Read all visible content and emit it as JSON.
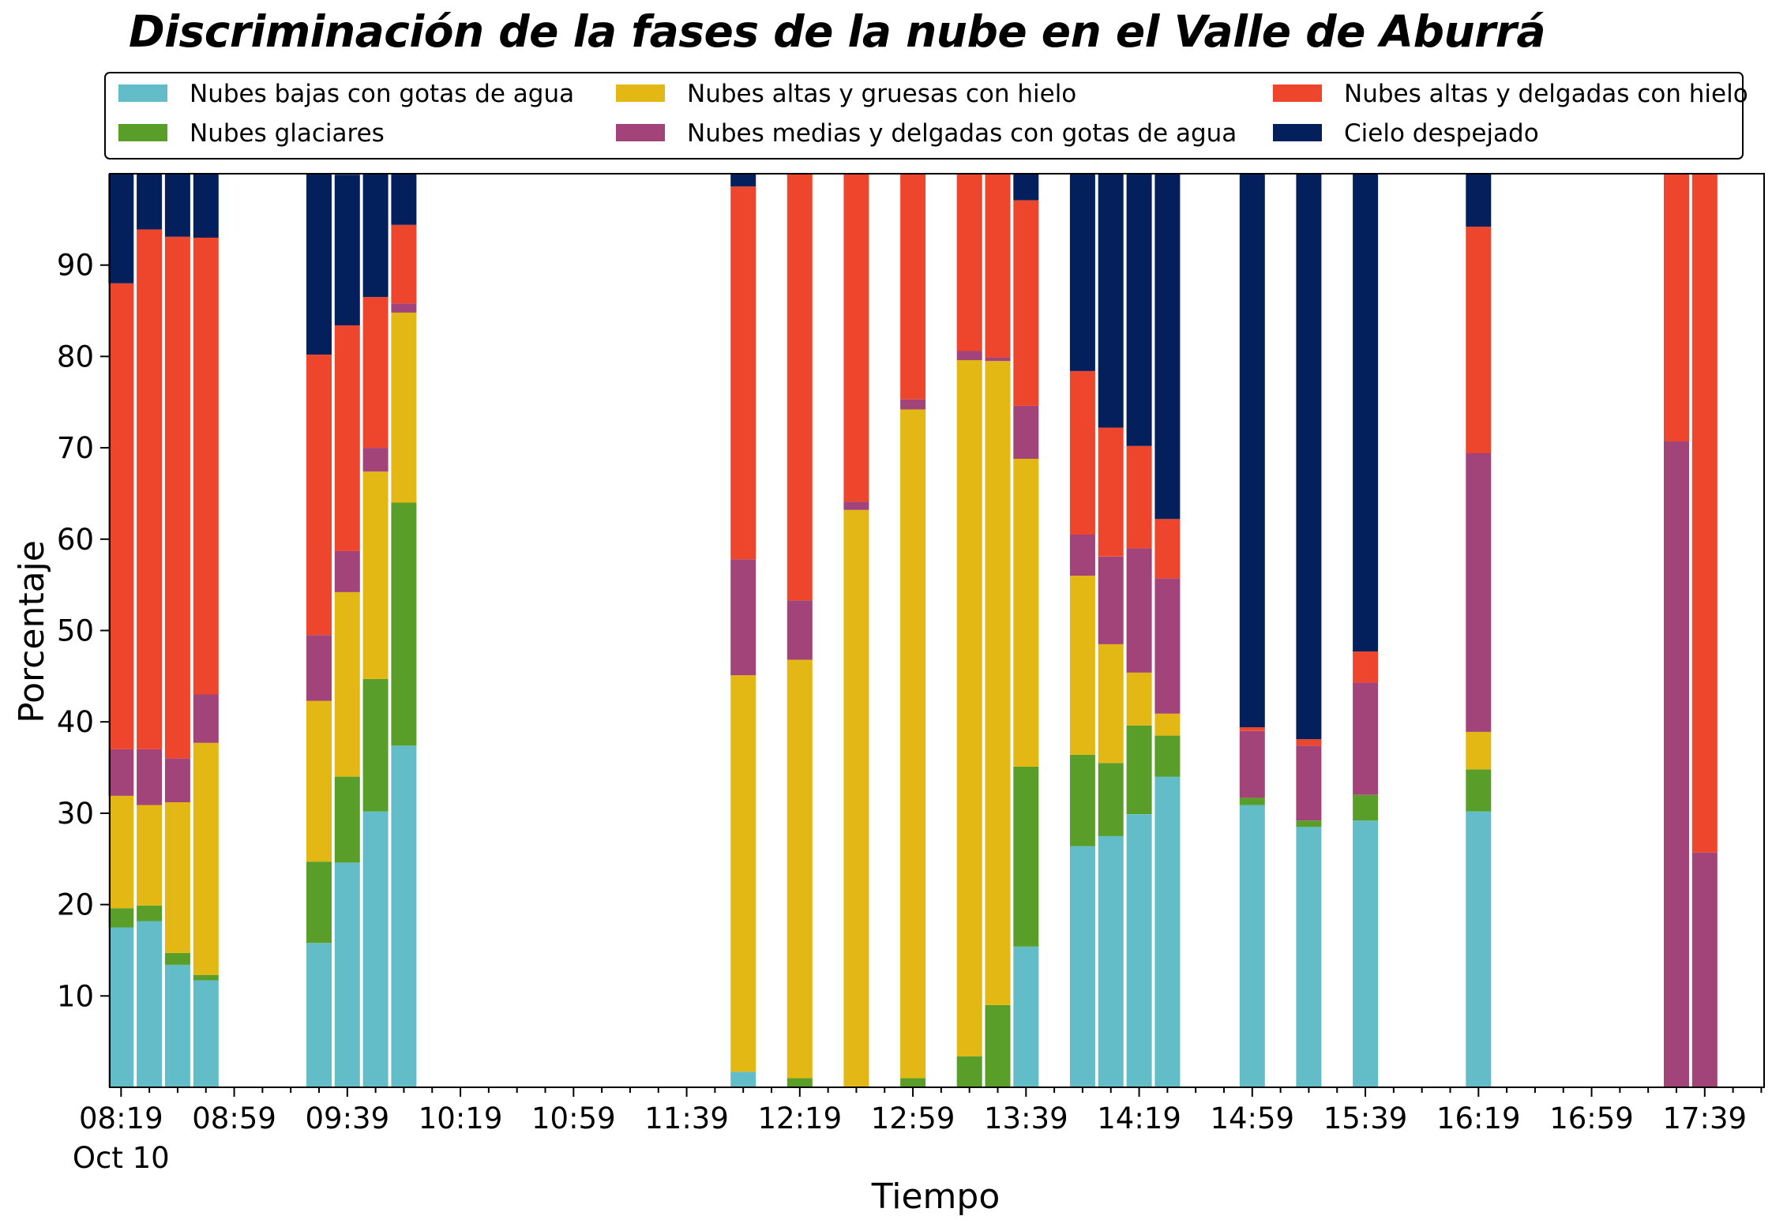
{
  "chart_data": {
    "type": "bar",
    "stacked": true,
    "title": "Discriminación de la fases de la nube en el Valle de Aburrá",
    "xlabel": "Tiempo",
    "ylabel": "Porcentaje",
    "ylim": [
      0,
      100
    ],
    "yticks": [
      10,
      20,
      30,
      40,
      50,
      60,
      70,
      80,
      90
    ],
    "xlim_minutes": [
      495,
      1080
    ],
    "xticks_major": [
      {
        "t": 499,
        "label": "08:19",
        "sublabel": "Oct 10"
      },
      {
        "t": 539,
        "label": "08:59"
      },
      {
        "t": 579,
        "label": "09:39"
      },
      {
        "t": 619,
        "label": "10:19"
      },
      {
        "t": 659,
        "label": "10:59"
      },
      {
        "t": 699,
        "label": "11:39"
      },
      {
        "t": 739,
        "label": "12:19"
      },
      {
        "t": 779,
        "label": "12:59"
      },
      {
        "t": 819,
        "label": "13:39"
      },
      {
        "t": 859,
        "label": "14:19"
      },
      {
        "t": 899,
        "label": "14:59"
      },
      {
        "t": 939,
        "label": "15:39"
      },
      {
        "t": 979,
        "label": "16:19"
      },
      {
        "t": 1019,
        "label": "16:59"
      },
      {
        "t": 1059,
        "label": "17:39"
      }
    ],
    "legend_position": "top, above plot, 3 columns",
    "grid": false,
    "x_times": [
      "08:19",
      "08:29",
      "08:39",
      "08:49",
      "09:29",
      "09:39",
      "09:49",
      "09:59",
      "11:59",
      "12:19",
      "12:39",
      "12:59",
      "13:19",
      "13:29",
      "13:39",
      "13:59",
      "14:09",
      "14:19",
      "14:29",
      "14:59",
      "15:19",
      "15:39",
      "16:19",
      "17:29",
      "17:39"
    ],
    "series": [
      {
        "name": "Nubes bajas con gotas de agua",
        "color": "#63BDC8",
        "values": [
          17.5,
          18.2,
          13.4,
          11.7,
          15.8,
          24.6,
          30.2,
          37.4,
          1.7,
          0,
          0,
          0,
          0,
          0,
          15.4,
          26.4,
          27.5,
          29.9,
          34.0,
          30.9,
          28.5,
          29.2,
          30.2,
          0,
          0
        ]
      },
      {
        "name": "Nubes glaciares",
        "color": "#5A9E2A",
        "values": [
          2.1,
          1.7,
          1.3,
          0.6,
          8.9,
          9.4,
          14.5,
          26.6,
          0,
          1.0,
          0,
          1.0,
          3.4,
          9.0,
          19.7,
          10.0,
          8.0,
          9.7,
          4.5,
          0.8,
          0.7,
          2.8,
          4.6,
          0,
          0
        ]
      },
      {
        "name": "Nubes altas y gruesas con hielo",
        "color": "#E3B714",
        "values": [
          12.3,
          11.0,
          16.5,
          25.4,
          17.6,
          20.2,
          22.7,
          20.8,
          43.4,
          45.8,
          63.2,
          73.2,
          76.2,
          70.5,
          33.7,
          19.6,
          13.0,
          5.8,
          2.4,
          0,
          0,
          0,
          4.1,
          0,
          0
        ]
      },
      {
        "name": "Nubes medias y delgadas con gotas de agua",
        "color": "#A2437A",
        "values": [
          5.1,
          6.1,
          4.8,
          5.3,
          7.2,
          4.5,
          2.6,
          1.0,
          12.7,
          6.5,
          0.9,
          1.1,
          1.0,
          0.4,
          5.8,
          4.5,
          9.6,
          13.6,
          14.8,
          7.3,
          8.2,
          12.3,
          30.5,
          70.7,
          25.7
        ]
      },
      {
        "name": "Nubes altas y delgadas con hielo",
        "color": "#EE462C",
        "values": [
          51.0,
          56.9,
          57.1,
          50.0,
          30.7,
          24.7,
          16.5,
          8.6,
          40.8,
          46.7,
          35.9,
          24.7,
          19.4,
          20.1,
          22.5,
          17.9,
          14.1,
          11.2,
          6.5,
          0.4,
          0.7,
          3.4,
          24.8,
          29.3,
          74.3
        ]
      },
      {
        "name": "Cielo despejado",
        "color": "#04205C",
        "values": [
          12.0,
          6.1,
          6.9,
          7.0,
          19.8,
          16.5,
          13.5,
          5.6,
          1.4,
          0,
          0,
          0,
          0,
          0,
          2.9,
          21.6,
          27.8,
          29.8,
          37.8,
          60.6,
          61.9,
          52.3,
          5.8,
          0,
          0
        ]
      }
    ]
  }
}
